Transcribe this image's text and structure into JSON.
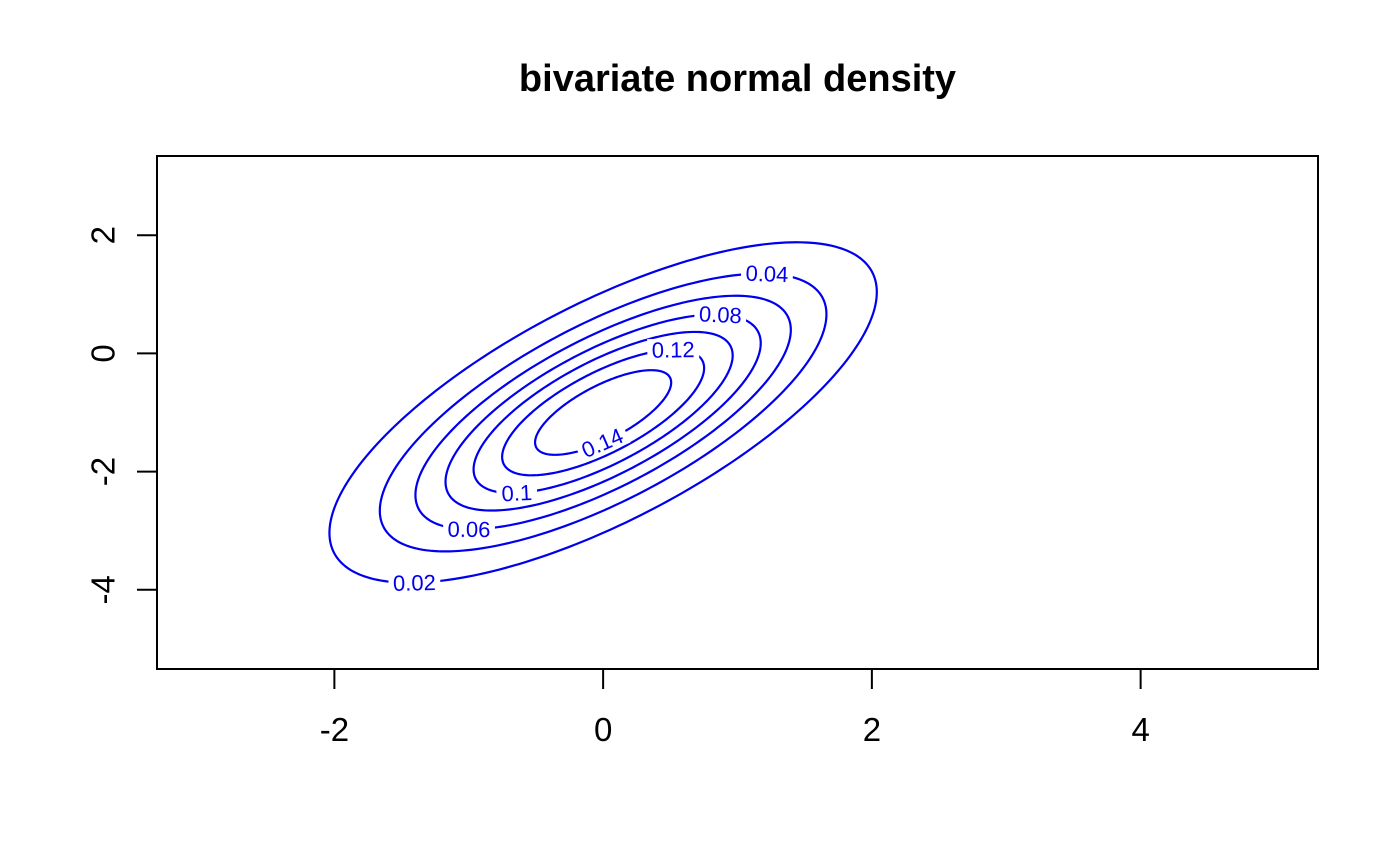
{
  "chart_data": {
    "type": "contour",
    "title": "bivariate normal density",
    "xlabel": "",
    "ylabel": "",
    "x_ticks": [
      -2,
      0,
      2,
      4
    ],
    "x_tick_labels": [
      "-2",
      "0",
      "2",
      "4"
    ],
    "y_ticks": [
      2,
      0,
      -2,
      -4
    ],
    "y_tick_labels": [
      "2",
      "0",
      "-2",
      "-4"
    ],
    "xlim": [
      -3.32,
      5.32
    ],
    "ylim": [
      -5.34,
      3.34
    ],
    "grid": false,
    "legend": "none",
    "line_color": "#0000ee",
    "axis_color": "#000000",
    "background_color": "#ffffff",
    "distribution": {
      "name": "bivariate-normal",
      "mean": [
        0,
        -1
      ],
      "sigma": [
        [
          1,
          1
        ],
        [
          1,
          2
        ]
      ]
    },
    "levels": [
      {
        "value": 0.02,
        "label": "0.02",
        "label_t": 3.398
      },
      {
        "value": 0.04,
        "label": "0.04",
        "label_t": 0.193
      },
      {
        "value": 0.06,
        "label": "0.06",
        "label_t": 3.363
      },
      {
        "value": 0.08,
        "label": "0.08",
        "label_t": 0.178
      },
      {
        "value": 0.1,
        "label": "0.1",
        "label_t": 3.43
      },
      {
        "value": 0.12,
        "label": "0.12",
        "label_t": 0.25
      },
      {
        "value": 0.14,
        "label": "0.14",
        "label_t": 4.147
      }
    ]
  }
}
